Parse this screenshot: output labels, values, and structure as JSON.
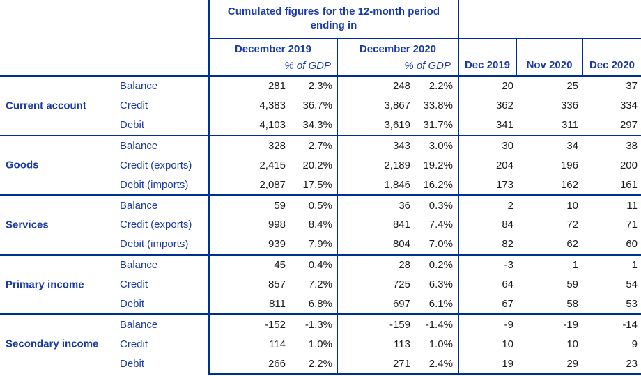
{
  "colors": {
    "grid_line": "#00308F",
    "label_blue": "#1B3AA6",
    "number_black": "#1A1A1A"
  },
  "chart_data": {
    "type": "table",
    "title": "Cumulated figures for the 12-month period ending in",
    "period_columns": [
      {
        "label": "December 2019",
        "sub_label": "% of GDP"
      },
      {
        "label": "December 2020",
        "sub_label": "% of GDP"
      }
    ],
    "month_columns": [
      "Dec 2019",
      "Nov 2020",
      "Dec 2020"
    ],
    "column_semantics": [
      "cumulated value Dec 2019",
      "% of GDP Dec 2019",
      "cumulated value Dec 2020",
      "% of GDP Dec 2020",
      "monthly Dec 2019",
      "monthly Nov 2020",
      "monthly Dec 2020"
    ],
    "groups": [
      {
        "name": "Current account",
        "rows": [
          {
            "label": "Balance",
            "cells": [
              "281",
              "2.3%",
              "248",
              "2.2%",
              "20",
              "25",
              "37"
            ]
          },
          {
            "label": "Credit",
            "cells": [
              "4,383",
              "36.7%",
              "3,867",
              "33.8%",
              "362",
              "336",
              "334"
            ]
          },
          {
            "label": "Debit",
            "cells": [
              "4,103",
              "34.3%",
              "3,619",
              "31.7%",
              "341",
              "311",
              "297"
            ]
          }
        ]
      },
      {
        "name": "Goods",
        "rows": [
          {
            "label": "Balance",
            "cells": [
              "328",
              "2.7%",
              "343",
              "3.0%",
              "30",
              "34",
              "38"
            ]
          },
          {
            "label": "Credit (exports)",
            "cells": [
              "2,415",
              "20.2%",
              "2,189",
              "19.2%",
              "204",
              "196",
              "200"
            ]
          },
          {
            "label": "Debit (imports)",
            "cells": [
              "2,087",
              "17.5%",
              "1,846",
              "16.2%",
              "173",
              "162",
              "161"
            ]
          }
        ]
      },
      {
        "name": "Services",
        "rows": [
          {
            "label": "Balance",
            "cells": [
              "59",
              "0.5%",
              "36",
              "0.3%",
              "2",
              "10",
              "11"
            ]
          },
          {
            "label": "Credit (exports)",
            "cells": [
              "998",
              "8.4%",
              "841",
              "7.4%",
              "84",
              "72",
              "71"
            ]
          },
          {
            "label": "Debit (imports)",
            "cells": [
              "939",
              "7.9%",
              "804",
              "7.0%",
              "82",
              "62",
              "60"
            ]
          }
        ]
      },
      {
        "name": "Primary income",
        "rows": [
          {
            "label": "Balance",
            "cells": [
              "45",
              "0.4%",
              "28",
              "0.2%",
              "-3",
              "1",
              "1"
            ]
          },
          {
            "label": "Credit",
            "cells": [
              "857",
              "7.2%",
              "725",
              "6.3%",
              "64",
              "59",
              "54"
            ]
          },
          {
            "label": "Debit",
            "cells": [
              "811",
              "6.8%",
              "697",
              "6.1%",
              "67",
              "58",
              "53"
            ]
          }
        ]
      },
      {
        "name": "Secondary income",
        "rows": [
          {
            "label": "Balance",
            "cells": [
              "-152",
              "-1.3%",
              "-159",
              "-1.4%",
              "-9",
              "-19",
              "-14"
            ]
          },
          {
            "label": "Credit",
            "cells": [
              "114",
              "1.0%",
              "113",
              "1.0%",
              "10",
              "10",
              "9"
            ]
          },
          {
            "label": "Debit",
            "cells": [
              "266",
              "2.2%",
              "271",
              "2.4%",
              "19",
              "29",
              "23"
            ]
          }
        ]
      }
    ]
  }
}
